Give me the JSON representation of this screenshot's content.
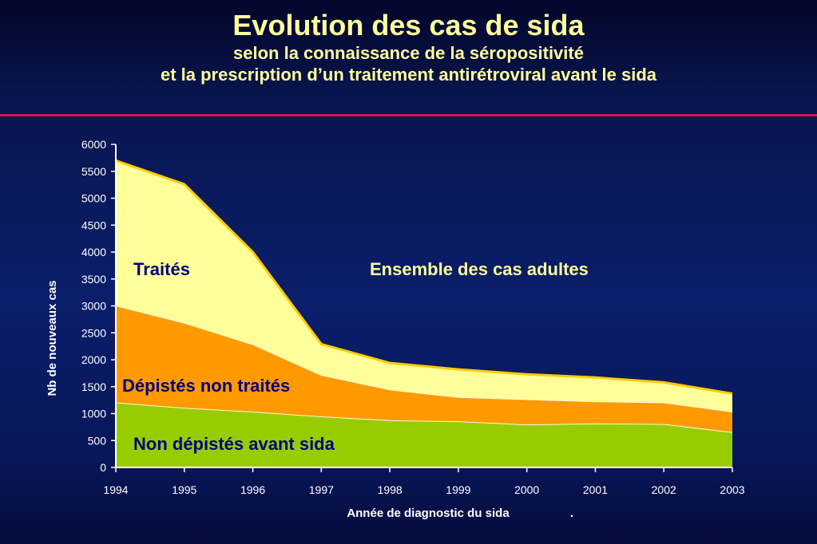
{
  "title": {
    "main": "Evolution des cas de sida",
    "line2": "selon la connaissance de la séropositivité",
    "line3": "et la prescription d’un traitement antirétroviral avant le sida"
  },
  "colors": {
    "title": "#ffff99",
    "divider": "#d9144a",
    "non_depistes": "#99cc00",
    "depistes_non_traites": "#ff9900",
    "traites": "#ffff99",
    "top_line": "#ffcc00",
    "annotation_dark": "#000080",
    "annotation_light": "#ffff99"
  },
  "chart_data": {
    "type": "area",
    "stacked": true,
    "x": [
      1994,
      1995,
      1996,
      1997,
      1998,
      1999,
      2000,
      2001,
      2002,
      2003
    ],
    "xticks": [
      "1994",
      "1995",
      "1996",
      "1997",
      "1998",
      "1999",
      "2000",
      "2001",
      "2002",
      "2003"
    ],
    "ylim": [
      0,
      6000
    ],
    "yticks": [
      "0",
      "500",
      "1000",
      "1500",
      "2000",
      "2500",
      "3000",
      "3500",
      "4000",
      "4500",
      "5000",
      "5500",
      "6000"
    ],
    "xlabel": "Année de diagnostic du sida",
    "xlabel_suffix": ".",
    "ylabel": "Nb de nouveaux cas",
    "series": [
      {
        "name": "Non dépistés avant sida",
        "values": [
          1200,
          1100,
          1030,
          940,
          870,
          850,
          790,
          810,
          800,
          650
        ]
      },
      {
        "name": "Dépistés non traités",
        "values": [
          1800,
          1580,
          1250,
          770,
          570,
          450,
          470,
          410,
          400,
          380
        ]
      },
      {
        "name": "Traités",
        "values": [
          2700,
          2580,
          1720,
          580,
          500,
          520,
          470,
          450,
          380,
          340
        ]
      }
    ],
    "annotations": {
      "traites": "Traités",
      "ensemble": "Ensemble des cas adultes",
      "depistes": "Dépistés non traités",
      "non_depistes": "Non dépistés avant sida"
    },
    "grid": false,
    "legend": "none"
  }
}
